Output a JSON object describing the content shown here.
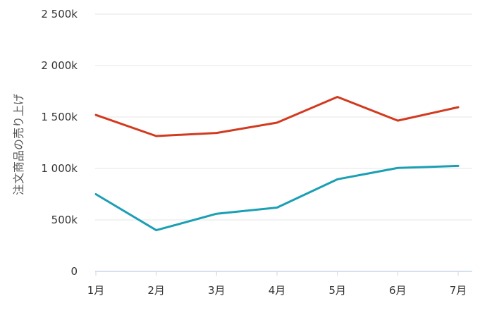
{
  "chart_data": {
    "type": "line",
    "title": "",
    "xlabel": "",
    "ylabel": "注文商品の売り上げ",
    "categories": [
      "1月",
      "2月",
      "3月",
      "4月",
      "5月",
      "6月",
      "7月"
    ],
    "series": [
      {
        "color": "#d23a1f",
        "values": [
          1520,
          1315,
          1345,
          1445,
          1695,
          1465,
          1595
        ]
      },
      {
        "color": "#1a9fb4",
        "values": [
          750,
          400,
          560,
          620,
          895,
          1005,
          1025
        ]
      }
    ],
    "ylim": [
      0,
      2500
    ],
    "yticks": [
      0,
      500,
      1000,
      1500,
      2000,
      2500
    ],
    "ytick_labels": [
      "0",
      "500k",
      "1 000k",
      "1 500k",
      "2 000k",
      "2 500k"
    ],
    "grid": true,
    "legend": "none"
  }
}
